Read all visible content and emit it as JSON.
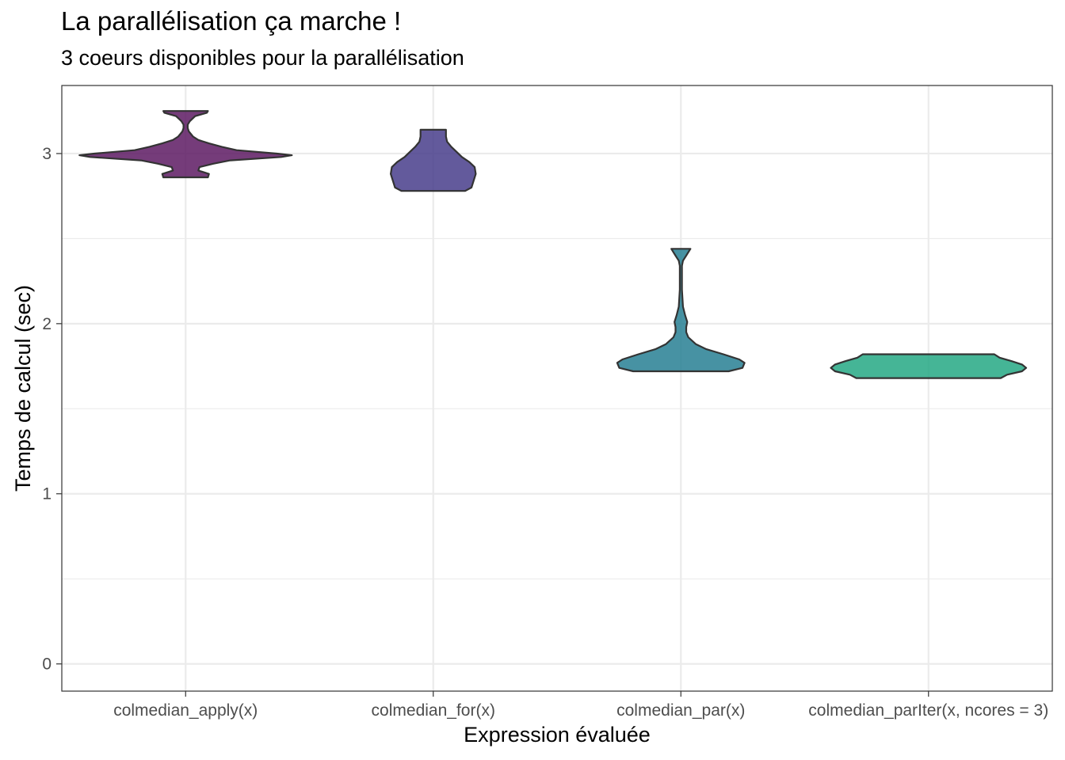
{
  "chart_data": {
    "type": "violin",
    "title": "La parallélisation ça marche !",
    "subtitle": "3 coeurs disponibles pour la parallélisation",
    "xlabel": "Expression évaluée",
    "ylabel": "Temps de calcul (sec)",
    "ylim": [
      -0.16,
      3.4
    ],
    "yticks": [
      0,
      1,
      2,
      3
    ],
    "grid": true,
    "categories": [
      "colmedian_apply(x)",
      "colmedian_for(x)",
      "colmedian_par(x)",
      "colmedian_parIter(x, ncores = 3)"
    ],
    "series": [
      {
        "category": "colmedian_apply(x)",
        "color": "#5d1a63",
        "min": 2.86,
        "max": 3.25,
        "profile": [
          [
            2.86,
            0.21
          ],
          [
            2.88,
            0.22
          ],
          [
            2.9,
            0.12
          ],
          [
            2.92,
            0.13
          ],
          [
            2.94,
            0.26
          ],
          [
            2.96,
            0.42
          ],
          [
            2.98,
            0.9
          ],
          [
            2.99,
            1.0
          ],
          [
            3.0,
            0.86
          ],
          [
            3.02,
            0.48
          ],
          [
            3.04,
            0.34
          ],
          [
            3.06,
            0.22
          ],
          [
            3.08,
            0.12
          ],
          [
            3.1,
            0.07
          ],
          [
            3.13,
            0.03
          ],
          [
            3.15,
            0.02
          ],
          [
            3.17,
            0.02
          ],
          [
            3.19,
            0.04
          ],
          [
            3.22,
            0.09
          ],
          [
            3.24,
            0.2
          ],
          [
            3.25,
            0.21
          ]
        ]
      },
      {
        "category": "colmedian_for(x)",
        "color": "#483d8b",
        "min": 2.78,
        "max": 3.14,
        "profile": [
          [
            2.78,
            0.3
          ],
          [
            2.8,
            0.36
          ],
          [
            2.84,
            0.38
          ],
          [
            2.88,
            0.4
          ],
          [
            2.92,
            0.39
          ],
          [
            2.95,
            0.34
          ],
          [
            2.98,
            0.27
          ],
          [
            3.01,
            0.22
          ],
          [
            3.04,
            0.17
          ],
          [
            3.07,
            0.13
          ],
          [
            3.1,
            0.12
          ],
          [
            3.14,
            0.12
          ]
        ]
      },
      {
        "category": "colmedian_par(x)",
        "color": "#277f93",
        "min": 1.72,
        "max": 2.44,
        "profile": [
          [
            1.72,
            0.45
          ],
          [
            1.74,
            0.58
          ],
          [
            1.77,
            0.6
          ],
          [
            1.79,
            0.55
          ],
          [
            1.82,
            0.4
          ],
          [
            1.85,
            0.24
          ],
          [
            1.88,
            0.14
          ],
          [
            1.92,
            0.07
          ],
          [
            1.95,
            0.05
          ],
          [
            1.98,
            0.05
          ],
          [
            2.01,
            0.06
          ],
          [
            2.05,
            0.04
          ],
          [
            2.1,
            0.02
          ],
          [
            2.2,
            0.01
          ],
          [
            2.3,
            0.01
          ],
          [
            2.34,
            0.01
          ],
          [
            2.37,
            0.02
          ],
          [
            2.4,
            0.05
          ],
          [
            2.44,
            0.09
          ]
        ]
      },
      {
        "category": "colmedian_parIter(x, ncores = 3)",
        "color": "#24a884",
        "min": 1.68,
        "max": 1.82,
        "profile": [
          [
            1.68,
            0.68
          ],
          [
            1.7,
            0.74
          ],
          [
            1.72,
            0.88
          ],
          [
            1.74,
            0.92
          ],
          [
            1.76,
            0.88
          ],
          [
            1.78,
            0.78
          ],
          [
            1.8,
            0.67
          ],
          [
            1.82,
            0.62
          ]
        ]
      }
    ]
  }
}
